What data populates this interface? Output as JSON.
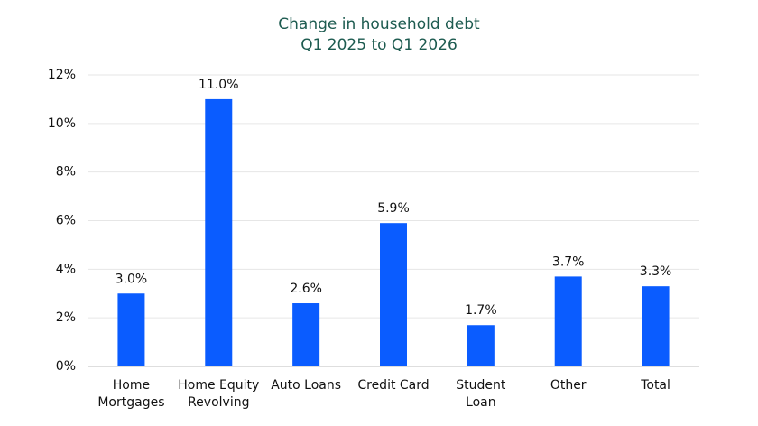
{
  "chart_data": {
    "type": "bar",
    "title": "Change in household debt",
    "subtitle": "Q1 2025 to Q1 2026",
    "categories": [
      "Home\nMortgages",
      "Home Equity\nRevolving",
      "Auto Loans",
      "Credit Card",
      "Student\nLoan",
      "Other",
      "Total"
    ],
    "values": [
      3.0,
      11.0,
      2.6,
      5.9,
      1.7,
      3.7,
      3.3
    ],
    "value_labels": [
      "3.0%",
      "11.0%",
      "2.6%",
      "5.9%",
      "1.7%",
      "3.7%",
      "3.3%"
    ],
    "color": "#0a5cff",
    "ylim": [
      0,
      12
    ],
    "yticks": [
      {
        "value": 0,
        "label": "0%"
      },
      {
        "value": 2,
        "label": "2%"
      },
      {
        "value": 4,
        "label": "4%"
      },
      {
        "value": 6,
        "label": "6%"
      },
      {
        "value": 8,
        "label": "8%"
      },
      {
        "value": 10,
        "label": "10%"
      },
      {
        "value": 12,
        "label": "12%"
      }
    ],
    "grid": true
  }
}
